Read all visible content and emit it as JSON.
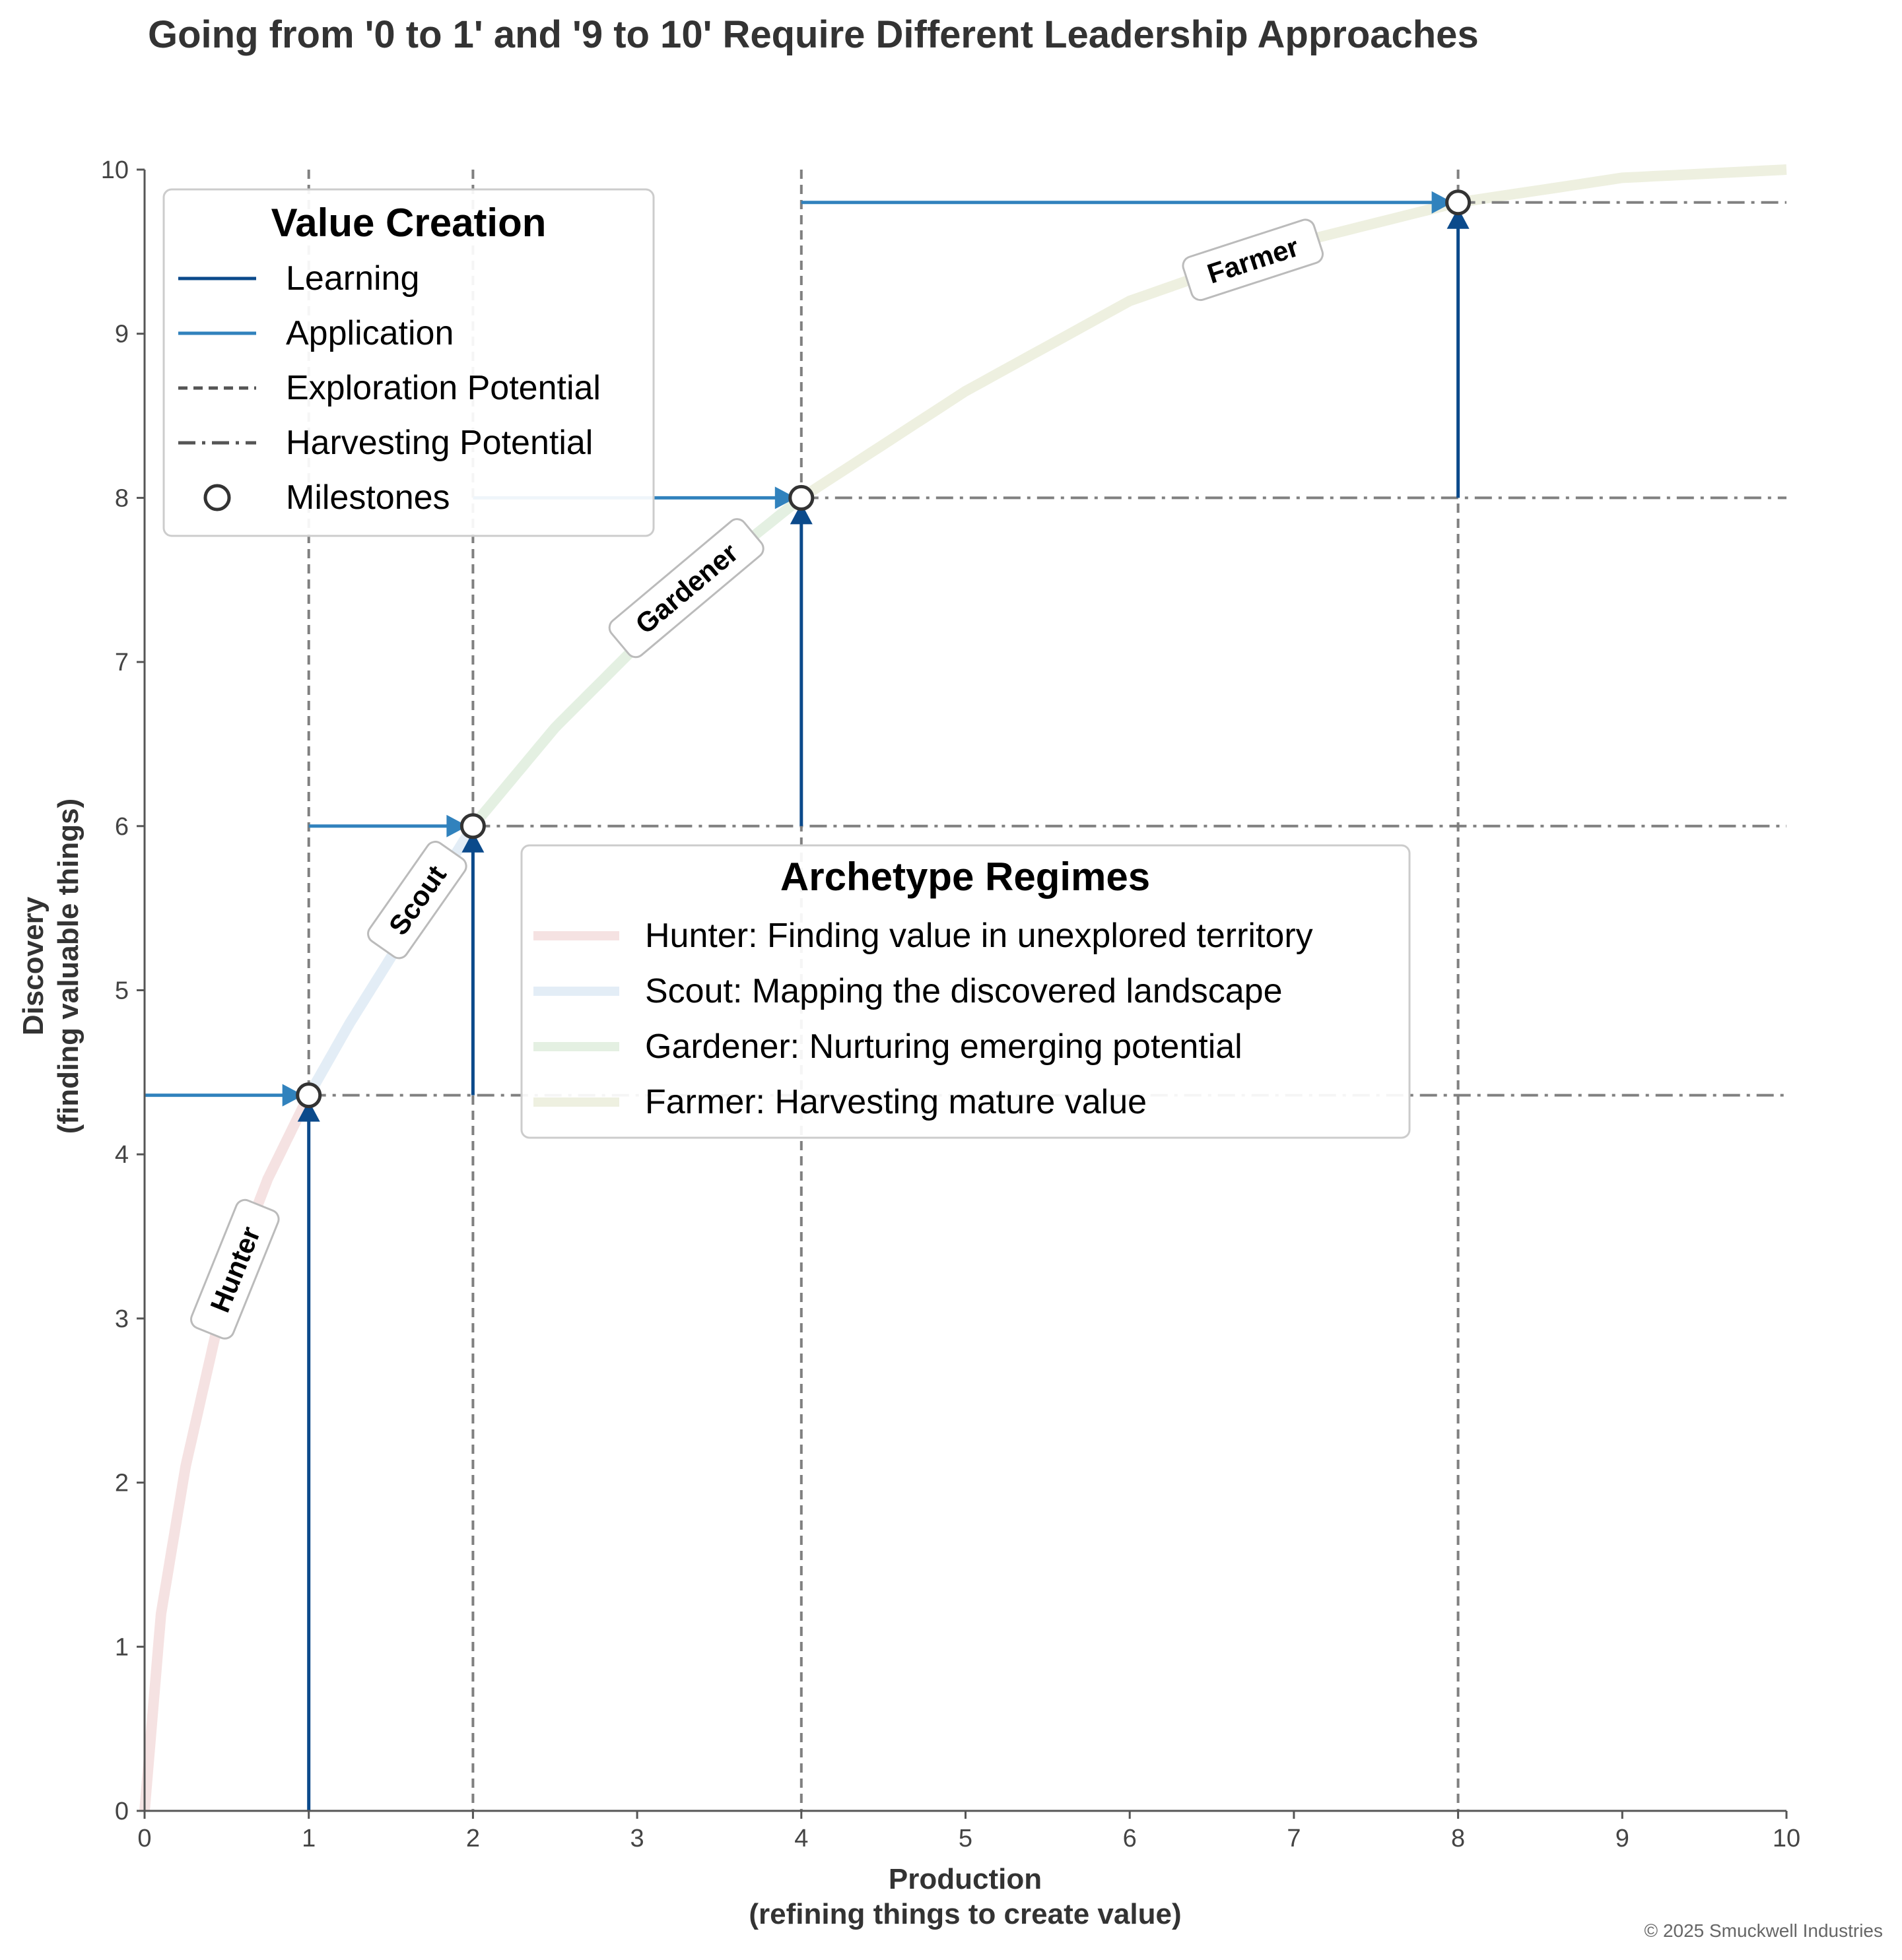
{
  "chart_data": {
    "type": "line",
    "title": "Going from '0 to 1' and '9 to 10' Require Different Leadership Approaches",
    "xlabel_lines": [
      "Production",
      "(refining things to create value)"
    ],
    "ylabel_lines": [
      "Discovery",
      "(finding valuable things)"
    ],
    "xlim": [
      0,
      10
    ],
    "ylim": [
      0,
      10
    ],
    "x_ticks": [
      0,
      1,
      2,
      3,
      4,
      5,
      6,
      7,
      8,
      9,
      10
    ],
    "y_ticks": [
      0,
      1,
      2,
      3,
      4,
      5,
      6,
      7,
      8,
      9,
      10
    ],
    "grid": false,
    "curve": {
      "description": "concave value-creation curve through the milestones",
      "points": [
        [
          0,
          0
        ],
        [
          0.1,
          1.2
        ],
        [
          0.25,
          2.1
        ],
        [
          0.5,
          3.2
        ],
        [
          0.75,
          3.85
        ],
        [
          1,
          4.36
        ],
        [
          1.25,
          4.8
        ],
        [
          1.5,
          5.2
        ],
        [
          2,
          6.0
        ],
        [
          2.5,
          6.6
        ],
        [
          3,
          7.1
        ],
        [
          3.5,
          7.6
        ],
        [
          4,
          8.0
        ],
        [
          5,
          8.65
        ],
        [
          6,
          9.2
        ],
        [
          7,
          9.55
        ],
        [
          8,
          9.8
        ],
        [
          9,
          9.95
        ],
        [
          10,
          10.0
        ]
      ]
    },
    "regimes": [
      {
        "name": "Hunter",
        "legend": "Hunter: Finding value in unexplored territory",
        "x_range": [
          0,
          1
        ],
        "color": "#f5e2e2",
        "label_x": 0.55,
        "label_y": 3.3,
        "angle": -68
      },
      {
        "name": "Scout",
        "legend": "Scout: Mapping the discovered landscape",
        "x_range": [
          1,
          2
        ],
        "color": "#e3edf6",
        "label_x": 1.66,
        "label_y": 5.55,
        "angle": -55
      },
      {
        "name": "Gardener",
        "legend": "Gardener: Nurturing emerging potential",
        "x_range": [
          2,
          4
        ],
        "color": "#e4f0e2",
        "label_x": 3.3,
        "label_y": 7.45,
        "angle": -40
      },
      {
        "name": "Farmer",
        "legend": "Farmer: Harvesting mature value",
        "x_range": [
          4,
          10
        ],
        "color": "#eef0e0",
        "label_x": 6.75,
        "label_y": 9.45,
        "angle": -18
      }
    ],
    "milestones": [
      [
        1,
        4.36
      ],
      [
        2,
        6.0
      ],
      [
        4,
        8.0
      ],
      [
        8,
        9.8
      ]
    ],
    "learning_arrows": [
      {
        "x": 1,
        "from_y": 0,
        "to_y": 4.36
      },
      {
        "x": 2,
        "from_y": 4.36,
        "to_y": 6.0
      },
      {
        "x": 4,
        "from_y": 6.0,
        "to_y": 8.0
      },
      {
        "x": 8,
        "from_y": 8.0,
        "to_y": 9.8
      }
    ],
    "application_arrows": [
      {
        "y": 4.36,
        "from_x": 0,
        "to_x": 1
      },
      {
        "y": 6.0,
        "from_x": 1,
        "to_x": 2
      },
      {
        "y": 8.0,
        "from_x": 2,
        "to_x": 4
      },
      {
        "y": 9.8,
        "from_x": 4,
        "to_x": 8
      }
    ],
    "exploration_potential_x": [
      1,
      2,
      4,
      8
    ],
    "harvesting_potential_y": [
      4.36,
      6.0,
      8.0,
      9.8
    ],
    "value_creation_legend": {
      "title": "Value Creation",
      "placement": "top-left",
      "entries": [
        {
          "label": "Learning",
          "style": "solid",
          "color": "#0b4a8b"
        },
        {
          "label": "Application",
          "style": "solid",
          "color": "#3182bd"
        },
        {
          "label": "Exploration Potential",
          "style": "dashed",
          "color": "#555555"
        },
        {
          "label": "Harvesting Potential",
          "style": "dashdot",
          "color": "#555555"
        },
        {
          "label": "Milestones",
          "style": "marker",
          "color": "#333333"
        }
      ]
    },
    "regime_legend": {
      "title": "Archetype Regimes",
      "placement": "center-right"
    },
    "colors": {
      "learning": "#0b4a8b",
      "application": "#3182bd",
      "potential": "#808080",
      "axis": "#555555"
    }
  },
  "footer": {
    "copyright": "© 2025 Smuckwell Industries"
  }
}
